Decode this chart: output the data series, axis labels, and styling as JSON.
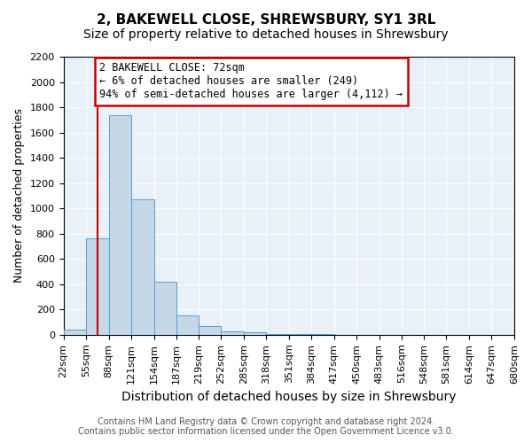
{
  "title1": "2, BAKEWELL CLOSE, SHREWSBURY, SY1 3RL",
  "title2": "Size of property relative to detached houses in Shrewsbury",
  "xlabel": "Distribution of detached houses by size in Shrewsbury",
  "ylabel": "Number of detached properties",
  "annotation_line1": "2 BAKEWELL CLOSE: 72sqm",
  "annotation_line2": "← 6% of detached houses are smaller (249)",
  "annotation_line3": "94% of semi-detached houses are larger (4,112) →",
  "footer1": "Contains HM Land Registry data © Crown copyright and database right 2024.",
  "footer2": "Contains public sector information licensed under the Open Government Licence v3.0.",
  "bar_values": [
    40,
    760,
    1740,
    1070,
    420,
    155,
    70,
    30,
    20,
    10,
    5,
    5,
    0,
    0,
    0,
    0,
    0,
    0,
    0,
    0
  ],
  "bin_edges": [
    22,
    55,
    88,
    121,
    154,
    187,
    219,
    252,
    285,
    318,
    351,
    384,
    417,
    450,
    483,
    516,
    548,
    581,
    614,
    647,
    680
  ],
  "tick_labels": [
    "22sqm",
    "55sqm",
    "88sqm",
    "121sqm",
    "154sqm",
    "187sqm",
    "219sqm",
    "252sqm",
    "285sqm",
    "318sqm",
    "351sqm",
    "384sqm",
    "417sqm",
    "450sqm",
    "483sqm",
    "516sqm",
    "548sqm",
    "581sqm",
    "614sqm",
    "647sqm",
    "680sqm"
  ],
  "ylim": [
    0,
    2200
  ],
  "yticks": [
    0,
    200,
    400,
    600,
    800,
    1000,
    1200,
    1400,
    1600,
    1800,
    2000,
    2200
  ],
  "property_size": 72,
  "bar_color": "#c5d8e8",
  "bar_edge_color": "#5b9bd5",
  "vline_color": "#cc0000",
  "annotation_box_color": "#cc0000",
  "background_color": "#e8f0f8",
  "grid_color": "#ffffff",
  "title_fontsize": 11,
  "subtitle_fontsize": 10,
  "axis_label_fontsize": 9,
  "tick_fontsize": 8,
  "annotation_fontsize": 8.5
}
